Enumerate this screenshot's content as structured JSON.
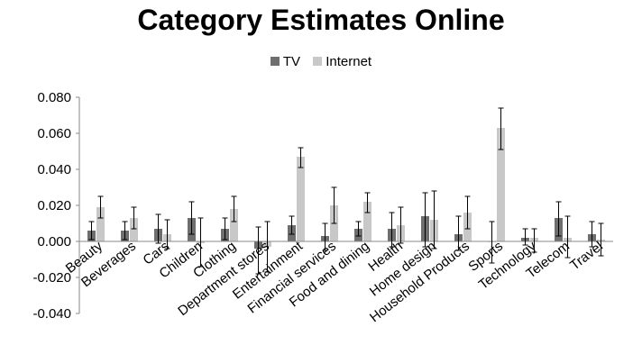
{
  "chart_data": {
    "type": "bar",
    "title": "Category Estimates Online",
    "categories": [
      "Beauty",
      "Beverages",
      "Cars",
      "Children",
      "Clothing",
      "Department stores",
      "Entertainment",
      "Financial services",
      "Food and dining",
      "Health",
      "Home design",
      "Household Products",
      "Sports",
      "Technology",
      "Telecom",
      "Travel"
    ],
    "series": [
      {
        "name": "TV",
        "color": "#6e6e6e",
        "values": [
          0.006,
          0.006,
          0.007,
          0.013,
          0.007,
          -0.004,
          0.009,
          0.003,
          0.007,
          0.007,
          0.014,
          0.004,
          0.0,
          0.002,
          0.013,
          0.004
        ],
        "error_low": [
          0.001,
          0.001,
          -0.001,
          0.004,
          0.001,
          -0.018,
          0.004,
          -0.005,
          0.003,
          -0.003,
          -0.003,
          -0.005,
          -0.012,
          -0.002,
          0.003,
          -0.003
        ],
        "error_high": [
          0.011,
          0.011,
          0.015,
          0.022,
          0.013,
          0.008,
          0.014,
          0.01,
          0.011,
          0.016,
          0.027,
          0.014,
          0.011,
          0.007,
          0.022,
          0.011
        ]
      },
      {
        "name": "Internet",
        "color": "#c8c8c8",
        "values": [
          0.019,
          0.013,
          0.004,
          -0.001,
          0.018,
          -0.003,
          0.047,
          0.02,
          0.022,
          0.009,
          0.012,
          0.016,
          0.063,
          0.002,
          0.002,
          0.001
        ],
        "error_low": [
          0.013,
          0.007,
          -0.004,
          -0.014,
          0.011,
          -0.017,
          0.041,
          0.01,
          0.016,
          -0.001,
          -0.004,
          0.007,
          0.051,
          -0.006,
          -0.009,
          -0.008
        ],
        "error_high": [
          0.025,
          0.019,
          0.012,
          0.013,
          0.025,
          0.011,
          0.052,
          0.03,
          0.027,
          0.019,
          0.028,
          0.025,
          0.074,
          0.007,
          0.014,
          0.01
        ]
      }
    ],
    "ylim": [
      -0.04,
      0.08
    ],
    "yticks": [
      "0.080",
      "0.060",
      "0.040",
      "0.020",
      "0.000",
      "-0.020",
      "-0.040"
    ],
    "ytick_values": [
      0.08,
      0.06,
      0.04,
      0.02,
      0.0,
      -0.02,
      -0.04
    ],
    "legend_position": "top",
    "grid": false
  }
}
